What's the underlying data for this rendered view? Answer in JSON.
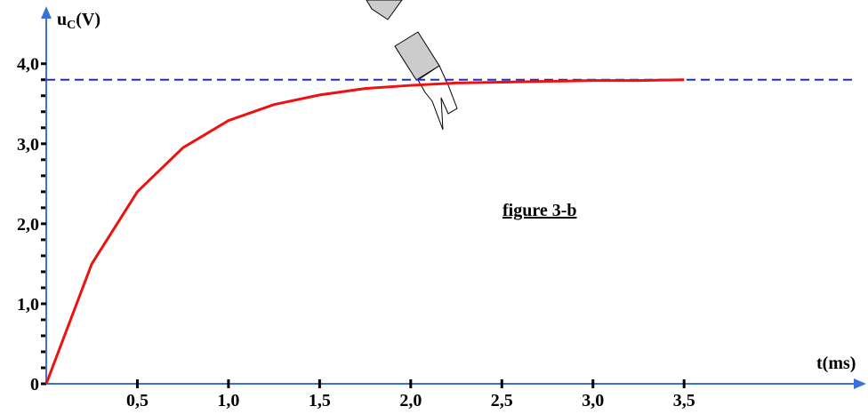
{
  "chart_data": {
    "type": "line",
    "y_label": {
      "symbol": "u",
      "subscript": "C",
      "unit": "(V)"
    },
    "x_label": "t(ms)",
    "annotation": "figure 3-b",
    "x": [
      0,
      0.25,
      0.5,
      0.75,
      1.0,
      1.25,
      1.5,
      1.75,
      2.0,
      2.25,
      2.5,
      2.75,
      3.0,
      3.25,
      3.5
    ],
    "series": [
      {
        "color": "#ee1111",
        "values": [
          0,
          1.5,
          2.4,
          2.95,
          3.29,
          3.49,
          3.61,
          3.69,
          3.73,
          3.76,
          3.77,
          3.78,
          3.79,
          3.79,
          3.8
        ]
      }
    ],
    "asymptote": 3.8,
    "asymptote_color": "#1a2fd0",
    "axis_color": "#3a70d8",
    "xlim": [
      0,
      4.48
    ],
    "ylim": [
      0,
      4.63
    ],
    "xticks": [
      {
        "value": 0.5,
        "label": "0,5"
      },
      {
        "value": 1.0,
        "label": "1,0"
      },
      {
        "value": 1.5,
        "label": "1,5"
      },
      {
        "value": 2.0,
        "label": "2,0"
      },
      {
        "value": 2.5,
        "label": "2,5"
      },
      {
        "value": 3.0,
        "label": "3,0"
      },
      {
        "value": 3.5,
        "label": "3,5"
      }
    ],
    "yticks": [
      0,
      {
        "value": 1.0,
        "label": "1,0"
      },
      {
        "value": 2.0,
        "label": "2,0"
      },
      {
        "value": 3.0,
        "label": "3,0"
      },
      {
        "value": 4.0,
        "label": "4,0"
      }
    ],
    "yminorticks": [
      0.2,
      0.4,
      0.6,
      0.8,
      1.2,
      1.4,
      1.6,
      1.8,
      2.2,
      2.4,
      2.6,
      2.8,
      3.2,
      3.4,
      3.6,
      3.8
    ]
  }
}
